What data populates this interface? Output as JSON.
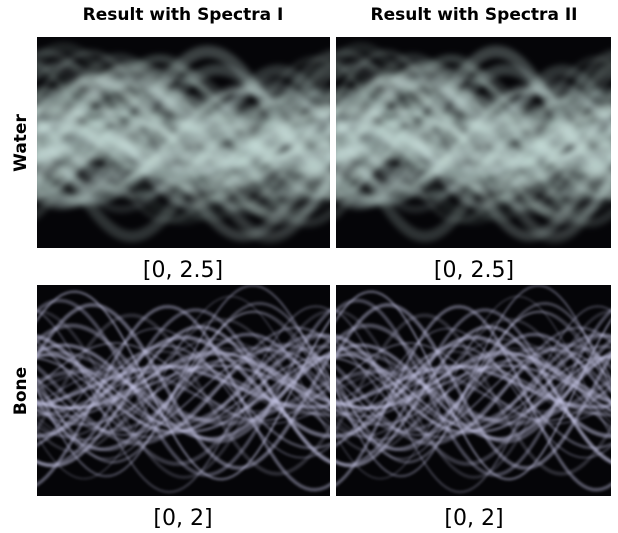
{
  "columns": [
    "Result with Spectra I",
    "Result with Spectra II"
  ],
  "rows": [
    {
      "label": "Water",
      "ranges": [
        "[0, 2.5]",
        "[0, 2.5]"
      ]
    },
    {
      "label": "Bone",
      "ranges": [
        "[0, 2]",
        "[0, 2]"
      ]
    }
  ]
}
